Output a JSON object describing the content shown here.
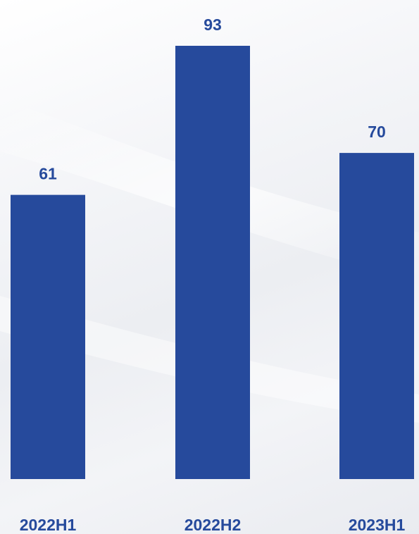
{
  "chart_data": {
    "type": "bar",
    "categories": [
      "2022H1",
      "2022H2",
      "2023H1"
    ],
    "values": [
      61,
      93,
      70
    ],
    "title": "",
    "xlabel": "",
    "ylabel": "",
    "ylim": [
      0,
      93
    ],
    "grid": false,
    "bar_color": "#264a9c",
    "label_color": "#264a9c"
  }
}
